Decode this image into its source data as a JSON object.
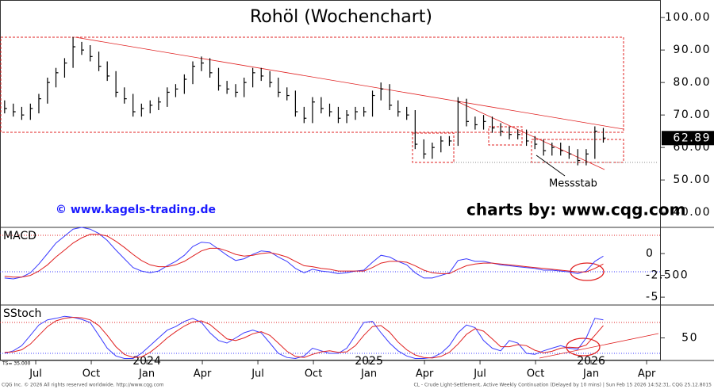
{
  "chart_data": {
    "type": "ohlc",
    "title": "Rohöl (Wochenchart)",
    "color": "#000000",
    "x": [
      2023.36,
      2023.399,
      2023.437,
      2023.476,
      2023.514,
      2023.553,
      2023.591,
      2023.63,
      2023.668,
      2023.707,
      2023.745,
      2023.784,
      2023.822,
      2023.861,
      2023.899,
      2023.938,
      2023.976,
      2024.015,
      2024.053,
      2024.092,
      2024.13,
      2024.169,
      2024.207,
      2024.246,
      2024.284,
      2024.323,
      2024.361,
      2024.4,
      2024.438,
      2024.477,
      2024.515,
      2024.554,
      2024.592,
      2024.631,
      2024.669,
      2024.708,
      2024.746,
      2024.785,
      2024.823,
      2024.862,
      2024.9,
      2024.939,
      2024.977,
      2025.016,
      2025.054,
      2025.093,
      2025.131,
      2025.17,
      2025.208,
      2025.247,
      2025.285,
      2025.324,
      2025.362,
      2025.401,
      2025.439,
      2025.478,
      2025.516,
      2025.555,
      2025.593,
      2025.632,
      2025.67,
      2025.709,
      2025.747,
      2025.786,
      2025.824,
      2025.863,
      2025.901,
      2025.94,
      2025.978,
      2026.017,
      2026.055
    ],
    "xlim": [
      2023.357,
      2026.314
    ],
    "xticks": [
      {
        "value": 2023.5,
        "label": "Jul"
      },
      {
        "value": 2023.75,
        "label": "Oct"
      },
      {
        "value": 2024.0,
        "label": "Jan"
      },
      {
        "value": 2024.25,
        "label": "Apr"
      },
      {
        "value": 2024.5,
        "label": "Jul"
      },
      {
        "value": 2024.75,
        "label": "Oct"
      },
      {
        "value": 2025.0,
        "label": "Jan"
      },
      {
        "value": 2025.25,
        "label": "Apr"
      },
      {
        "value": 2025.5,
        "label": "Jul"
      },
      {
        "value": 2025.75,
        "label": "Oct"
      },
      {
        "value": 2026.0,
        "label": "Jan"
      },
      {
        "value": 2026.25,
        "label": "Apr"
      }
    ],
    "year_labels": [
      2024,
      2025,
      2026
    ],
    "high": [
      74.5,
      73.5,
      72.5,
      73.5,
      76.5,
      81.5,
      84.5,
      87.5,
      94,
      92.5,
      91.5,
      89.5,
      86.5,
      83.5,
      78.5,
      76.5,
      73.5,
      74.5,
      75.5,
      78.5,
      79.5,
      82.5,
      86.5,
      88,
      87.5,
      84.5,
      80.5,
      79.5,
      81.5,
      84.5,
      84.5,
      83.5,
      81.5,
      78.5,
      77.5,
      72.5,
      75.5,
      75.5,
      73.5,
      72.5,
      71.5,
      72.5,
      72.5,
      77.5,
      80,
      79.5,
      74.5,
      72.5,
      71.5,
      62.5,
      61.5,
      63.5,
      63.5,
      75.5,
      75,
      69.5,
      70,
      69.5,
      67.5,
      66.5,
      65.5,
      65.5,
      63.5,
      62.5,
      61.5,
      61.5,
      60.5,
      59.5,
      59.5,
      66.5,
      66
    ],
    "low": [
      70.5,
      69.5,
      68.5,
      68.5,
      70.5,
      73.5,
      78.5,
      81.5,
      84.5,
      88.5,
      86.5,
      83.5,
      80.5,
      75.5,
      73.5,
      69.5,
      69.5,
      70.5,
      71.5,
      72.5,
      75.5,
      76.5,
      79.5,
      83.5,
      81.5,
      77.5,
      76.5,
      75.5,
      75.5,
      78.5,
      80.5,
      78.5,
      75.5,
      74.5,
      69.5,
      67.5,
      67.5,
      70.5,
      69.5,
      67.5,
      67.5,
      68.5,
      69.5,
      69.5,
      74.5,
      71.5,
      69.5,
      68.5,
      59.5,
      56.5,
      56.5,
      58.5,
      60.5,
      60.5,
      66.5,
      65.5,
      65.5,
      64.5,
      63.5,
      62.5,
      62.5,
      60.5,
      59.5,
      57.5,
      57.5,
      57.5,
      56.5,
      54.5,
      54.5,
      56.5,
      61.5
    ],
    "close": [
      72,
      71,
      70,
      72,
      75,
      80,
      83,
      86,
      91,
      90,
      88,
      85,
      82,
      77,
      75,
      71,
      72,
      73,
      74,
      77,
      78,
      81,
      85,
      86,
      83,
      79,
      78,
      77,
      80,
      83,
      82,
      80,
      77,
      76,
      71,
      69,
      74,
      72,
      71,
      69,
      70,
      71,
      71,
      76,
      78,
      73,
      71,
      70,
      61,
      58,
      60,
      62,
      62,
      74,
      68,
      67,
      68,
      66,
      65,
      64,
      64,
      62,
      61,
      59,
      60,
      59,
      58,
      56,
      58,
      65,
      62.89
    ],
    "ylim": [
      35.4,
      105.4
    ],
    "yticks": [
      {
        "value": 40,
        "label": "40.00"
      },
      {
        "value": 50,
        "label": "50.00"
      },
      {
        "value": 60,
        "label": "60.00"
      },
      {
        "value": 70,
        "label": "70.00"
      },
      {
        "value": 80,
        "label": "80.00"
      },
      {
        "value": 90,
        "label": "90.00"
      },
      {
        "value": 100,
        "label": "100.00"
      }
    ],
    "annotations": {
      "website": "© www.kagels-trading.de",
      "credit": "charts by: www.cqg.com",
      "ruler": "Messstab",
      "ts": "TS= 35.000"
    },
    "panels": [
      {
        "type": "line",
        "label": "MACD",
        "ylim": [
          -5.9,
          3.0
        ],
        "yticks": [
          0,
          {
            "value": -2.5,
            "label": "-2.500"
          },
          -5
        ],
        "series": [
          {
            "color": "#3a3aff",
            "values": [
              -2.8,
              -2.9,
              -2.7,
              -2.2,
              -1.2,
              0.0,
              1.2,
              2.0,
              2.8,
              3.0,
              2.8,
              2.3,
              1.5,
              0.4,
              -0.6,
              -1.6,
              -2.0,
              -2.2,
              -2.0,
              -1.4,
              -0.9,
              -0.2,
              0.8,
              1.3,
              1.2,
              0.5,
              -0.2,
              -0.8,
              -0.6,
              -0.1,
              0.3,
              0.2,
              -0.4,
              -0.9,
              -1.7,
              -2.2,
              -1.8,
              -2.0,
              -2.1,
              -2.3,
              -2.2,
              -2.0,
              -1.9,
              -1.0,
              -0.2,
              -0.4,
              -0.9,
              -1.3,
              -2.2,
              -2.8,
              -2.8,
              -2.5,
              -2.2,
              -0.8,
              -0.6,
              -0.9,
              -0.9,
              -1.1,
              -1.3,
              -1.4,
              -1.5,
              -1.6,
              -1.7,
              -1.9,
              -1.9,
              -2.0,
              -2.1,
              -2.3,
              -2.0,
              -0.9,
              -0.3
            ]
          },
          {
            "color": "#e02020",
            "values": [
              -2.6,
              -2.7,
              -2.7,
              -2.5,
              -2.0,
              -1.3,
              -0.4,
              0.4,
              1.2,
              1.8,
              2.2,
              2.2,
              2.0,
              1.4,
              0.7,
              -0.1,
              -0.8,
              -1.3,
              -1.5,
              -1.5,
              -1.3,
              -0.9,
              -0.3,
              0.3,
              0.6,
              0.6,
              0.3,
              -0.1,
              -0.3,
              -0.2,
              0.0,
              0.1,
              -0.1,
              -0.4,
              -0.9,
              -1.4,
              -1.5,
              -1.7,
              -1.8,
              -2.0,
              -2.0,
              -2.0,
              -2.0,
              -1.6,
              -1.1,
              -0.9,
              -0.9,
              -1.0,
              -1.4,
              -1.9,
              -2.2,
              -2.3,
              -2.3,
              -1.8,
              -1.4,
              -1.2,
              -1.1,
              -1.1,
              -1.2,
              -1.3,
              -1.4,
              -1.5,
              -1.6,
              -1.7,
              -1.8,
              -1.9,
              -2.0,
              -2.1,
              -2.1,
              -1.7,
              -1.2
            ]
          }
        ]
      },
      {
        "type": "line",
        "label": "SStoch",
        "ylim": [
          6.2,
          113.8
        ],
        "yticks": [
          50
        ],
        "series": [
          {
            "color": "#3a3aff",
            "values": [
              20,
              25,
              35,
              55,
              75,
              85,
              88,
              92,
              90,
              86,
              80,
              55,
              30,
              15,
              10,
              10,
              20,
              35,
              50,
              65,
              72,
              82,
              88,
              80,
              60,
              45,
              40,
              50,
              60,
              65,
              60,
              40,
              20,
              12,
              10,
              15,
              30,
              25,
              20,
              20,
              30,
              55,
              80,
              82,
              60,
              40,
              25,
              15,
              10,
              10,
              12,
              20,
              35,
              60,
              75,
              70,
              45,
              30,
              25,
              45,
              40,
              20,
              18,
              25,
              30,
              35,
              30,
              28,
              50,
              88,
              85
            ]
          },
          {
            "color": "#e02020",
            "values": [
              22,
              23,
              27,
              38,
              55,
              72,
              83,
              88,
              90,
              89,
              85,
              74,
              55,
              33,
              18,
              12,
              13,
              22,
              35,
              50,
              62,
              73,
              81,
              83,
              76,
              62,
              48,
              45,
              50,
              58,
              62,
              55,
              40,
              24,
              14,
              12,
              18,
              23,
              25,
              22,
              23,
              35,
              55,
              72,
              74,
              61,
              42,
              27,
              17,
              12,
              11,
              14,
              22,
              38,
              57,
              68,
              63,
              48,
              33,
              33,
              37,
              35,
              26,
              21,
              24,
              30,
              32,
              31,
              36,
              55,
              74
            ]
          }
        ]
      }
    ]
  },
  "footer": {
    "left": "CQG Inc. © 2026 All rights reserved worldwide. http://www.cqg.com",
    "right": "CL - Crude Light-Settlement, Active Weekly Continuation (Delayed by 10 mins) | Sun Feb 15 2026 14:52:31, CQG 25.12.8015"
  }
}
